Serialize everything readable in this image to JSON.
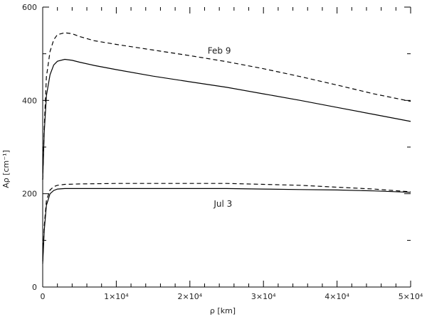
{
  "chart_data": {
    "type": "line",
    "title": "",
    "xlabel": "ρ [km]",
    "ylabel": "Aρ [cm⁻¹]",
    "xlim": [
      0,
      50000
    ],
    "ylim": [
      0,
      600
    ],
    "xticks": [
      0,
      10000,
      20000,
      30000,
      40000,
      50000
    ],
    "xtick_labels": [
      "0",
      "1×10⁴",
      "2×10⁴",
      "3×10⁴",
      "4×10⁴",
      "5×10⁴"
    ],
    "yticks": [
      0,
      200,
      400,
      600
    ],
    "ytick_labels": [
      "0",
      "200",
      "400",
      "600"
    ],
    "grid": false,
    "legend": "none",
    "annotations": [
      {
        "text": "Feb 9",
        "x": 24000,
        "y": 500
      },
      {
        "text": "Jul 3",
        "x": 24500,
        "y": 172
      }
    ],
    "series": [
      {
        "style": "dashed",
        "x": [
          0,
          200,
          500,
          1000,
          1500,
          2000,
          3000,
          4000,
          5000,
          7000,
          10000,
          15000,
          20000,
          25000,
          30000,
          35000,
          40000,
          45000,
          50000
        ],
        "y": [
          230,
          340,
          450,
          505,
          530,
          541,
          545,
          543,
          537,
          528,
          520,
          508,
          496,
          483,
          468,
          451,
          433,
          414,
          398
        ]
      },
      {
        "style": "solid",
        "x": [
          0,
          200,
          500,
          1000,
          1500,
          2000,
          3000,
          4000,
          5000,
          7000,
          10000,
          15000,
          20000,
          25000,
          30000,
          35000,
          40000,
          45000,
          50000
        ],
        "y": [
          230,
          330,
          410,
          455,
          476,
          484,
          488,
          486,
          482,
          475,
          466,
          452,
          440,
          428,
          414,
          400,
          385,
          370,
          355
        ]
      },
      {
        "style": "dashed",
        "x": [
          0,
          200,
          500,
          1000,
          1500,
          2000,
          3000,
          5000,
          10000,
          15000,
          20000,
          25000,
          30000,
          35000,
          40000,
          45000,
          50000
        ],
        "y": [
          55,
          130,
          185,
          208,
          215,
          218,
          220,
          221,
          222,
          222,
          222,
          222,
          220,
          218,
          214,
          210,
          204
        ]
      },
      {
        "style": "solid",
        "x": [
          0,
          200,
          500,
          1000,
          1500,
          2000,
          3000,
          5000,
          10000,
          15000,
          20000,
          25000,
          30000,
          35000,
          40000,
          45000,
          50000
        ],
        "y": [
          50,
          120,
          175,
          200,
          207,
          210,
          211,
          211,
          211,
          211,
          211,
          211,
          210,
          209,
          208,
          206,
          203
        ]
      }
    ]
  }
}
